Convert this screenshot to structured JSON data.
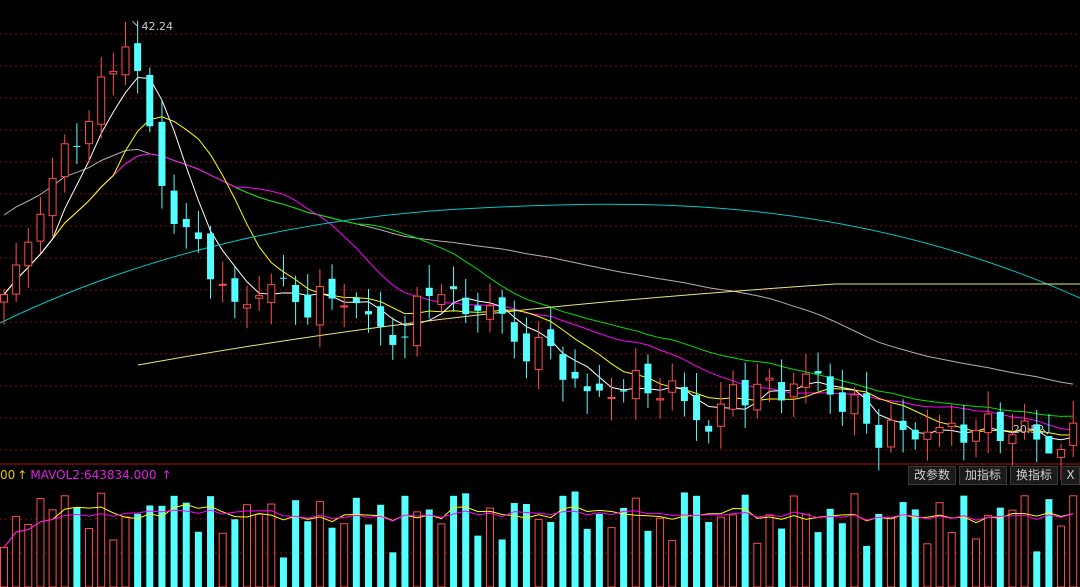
{
  "indicator_header": {
    "prefix": "00",
    "prefix_arrow": "↑",
    "mavol2_label": "MAVOL2:643834.000",
    "mavol2_arrow": "↑"
  },
  "toolbar": {
    "modify_params_label": "改参数",
    "add_indicator_label": "加指标",
    "switch_indicator_label": "换指标",
    "close_label": "X"
  },
  "price_annotations": {
    "high_label": "42.24",
    "low_label": "20.52"
  },
  "colors": {
    "up": "#ff4d4d",
    "down": "#54ffff",
    "ma5": "#ffffff",
    "ma10": "#ffff00",
    "ma20": "#ff00ff",
    "ma30": "#00e000",
    "ma60": "#b0b0b0",
    "ma120": "#00c8c8",
    "ma250": "#e8e880",
    "grid": "#8a1010",
    "separator": "#b01010"
  },
  "chart_data": {
    "type": "candlestick",
    "price_range": [
      19.0,
      43.2
    ],
    "volume_mavol2": 643834.0,
    "max_high": 42.24,
    "min_low": 20.52,
    "moving_averages": [
      "MA5",
      "MA10",
      "MA20",
      "MA30",
      "MA60",
      "MA120",
      "MA250"
    ],
    "volume_mas": [
      "MAVOL1",
      "MAVOL2"
    ]
  }
}
